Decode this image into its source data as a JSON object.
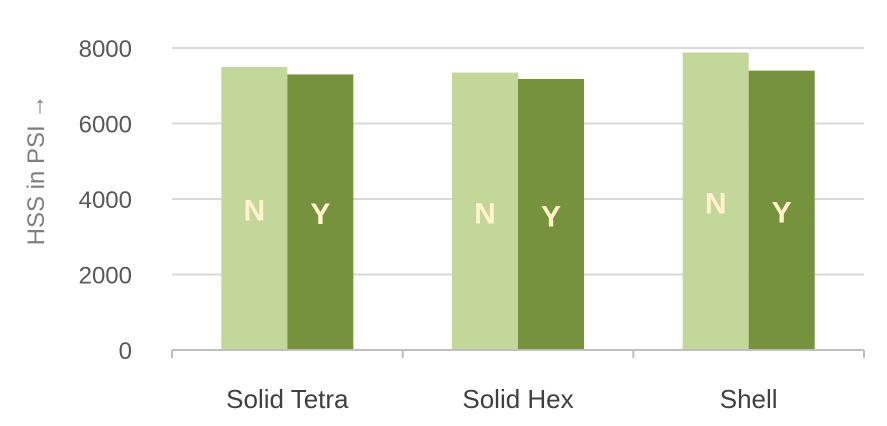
{
  "chart_data": {
    "type": "bar",
    "categories": [
      "Solid Tetra",
      "Solid Hex",
      "Shell"
    ],
    "series": [
      {
        "values": [
          7500,
          7350,
          7880
        ],
        "color": "#c4d79b",
        "bar_label": "N",
        "bar_label_color": "#fff2cc"
      },
      {
        "values": [
          7300,
          7180,
          7400
        ],
        "color": "#76923c",
        "bar_label": "Y",
        "bar_label_color": "#fff2cc"
      }
    ],
    "ylabel": "HSS in PSI →",
    "yticks": [
      "0",
      "2000",
      "4000",
      "6000",
      "8000"
    ],
    "ylim": [
      0,
      8000
    ],
    "grid": true,
    "legend": "none"
  }
}
